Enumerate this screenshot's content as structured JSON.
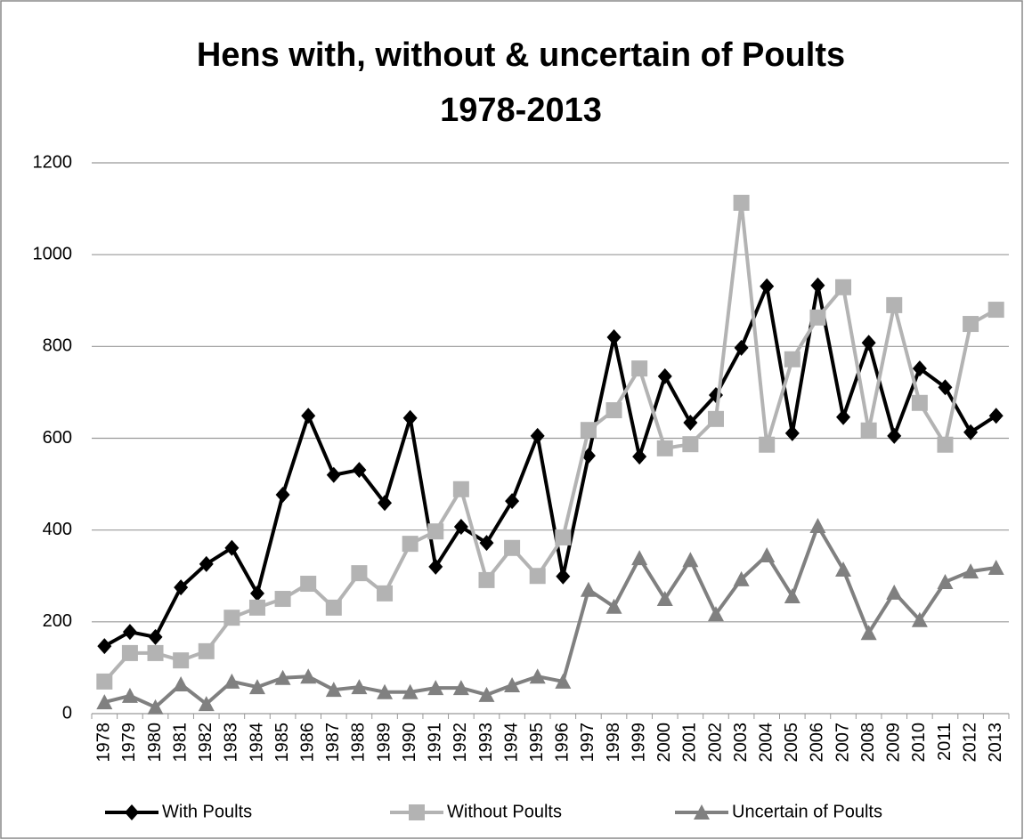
{
  "chart_data": {
    "type": "line",
    "title": "Hens with, without & uncertain of Poults",
    "subtitle": "1978-2013",
    "categories": [
      "1978",
      "1979",
      "1980",
      "1981",
      "1982",
      "1983",
      "1984",
      "1985",
      "1986",
      "1987",
      "1988",
      "1989",
      "1990",
      "1991",
      "1992",
      "1993",
      "1994",
      "1995",
      "1996",
      "1997",
      "1998",
      "1999",
      "2000",
      "2001",
      "2002",
      "2003",
      "2004",
      "2005",
      "2006",
      "2007",
      "2008",
      "2009",
      "2010",
      "2011",
      "2012",
      "2013"
    ],
    "series": [
      {
        "name": "With Poults",
        "color": "#000000",
        "marker": "diamond",
        "values": [
          147,
          178,
          167,
          275,
          326,
          361,
          262,
          477,
          649,
          520,
          531,
          459,
          644,
          320,
          407,
          372,
          463,
          605,
          299,
          562,
          820,
          560,
          735,
          634,
          694,
          797,
          931,
          611,
          933,
          646,
          808,
          605,
          752,
          711,
          613,
          649
        ]
      },
      {
        "name": "Without Poults",
        "color": "#b3b3b3",
        "marker": "square",
        "values": [
          70,
          132,
          132,
          116,
          136,
          209,
          231,
          250,
          283,
          231,
          306,
          262,
          370,
          397,
          489,
          291,
          361,
          300,
          384,
          618,
          661,
          752,
          578,
          587,
          642,
          1113,
          586,
          772,
          863,
          929,
          617,
          890,
          677,
          586,
          849,
          880
        ]
      },
      {
        "name": "Uncertain of Poults",
        "color": "#808080",
        "marker": "triangle",
        "values": [
          25,
          39,
          14,
          64,
          21,
          70,
          58,
          78,
          81,
          52,
          58,
          47,
          47,
          56,
          56,
          41,
          62,
          81,
          70,
          270,
          233,
          339,
          250,
          335,
          217,
          293,
          345,
          256,
          409,
          314,
          176,
          264,
          204,
          287,
          310,
          318
        ]
      }
    ],
    "ylim": [
      0,
      1200
    ],
    "yticks": [
      0,
      200,
      400,
      600,
      800,
      1000,
      1200
    ],
    "grid": true,
    "legend": "bottom"
  }
}
